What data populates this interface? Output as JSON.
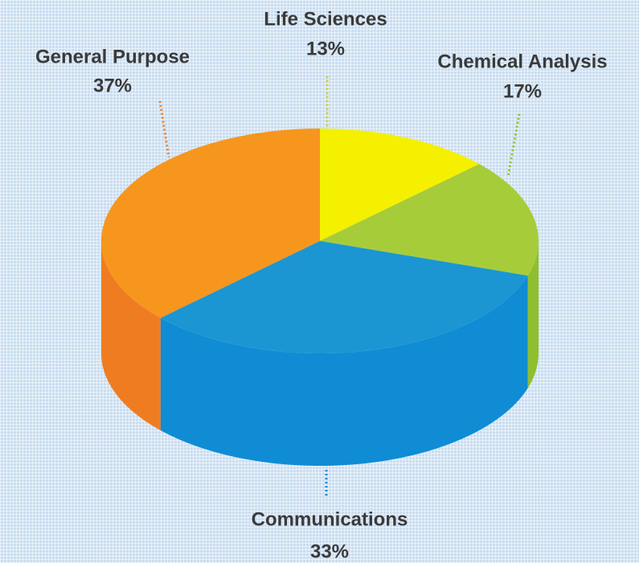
{
  "chart_data": {
    "type": "pie",
    "categories": [
      "Life Sciences",
      "Chemical Analysis",
      "Communications",
      "General Purpose"
    ],
    "values": [
      13,
      17,
      33,
      37
    ],
    "value_labels": [
      "13%",
      "17%",
      "33%",
      "37%"
    ],
    "colors": [
      "#f5f000",
      "#a6cc3a",
      "#1b96d2",
      "#f7961d"
    ],
    "side_colors": [
      "#d9d400",
      "#8fbf2e",
      "#0f8cd4",
      "#f07c22"
    ]
  }
}
